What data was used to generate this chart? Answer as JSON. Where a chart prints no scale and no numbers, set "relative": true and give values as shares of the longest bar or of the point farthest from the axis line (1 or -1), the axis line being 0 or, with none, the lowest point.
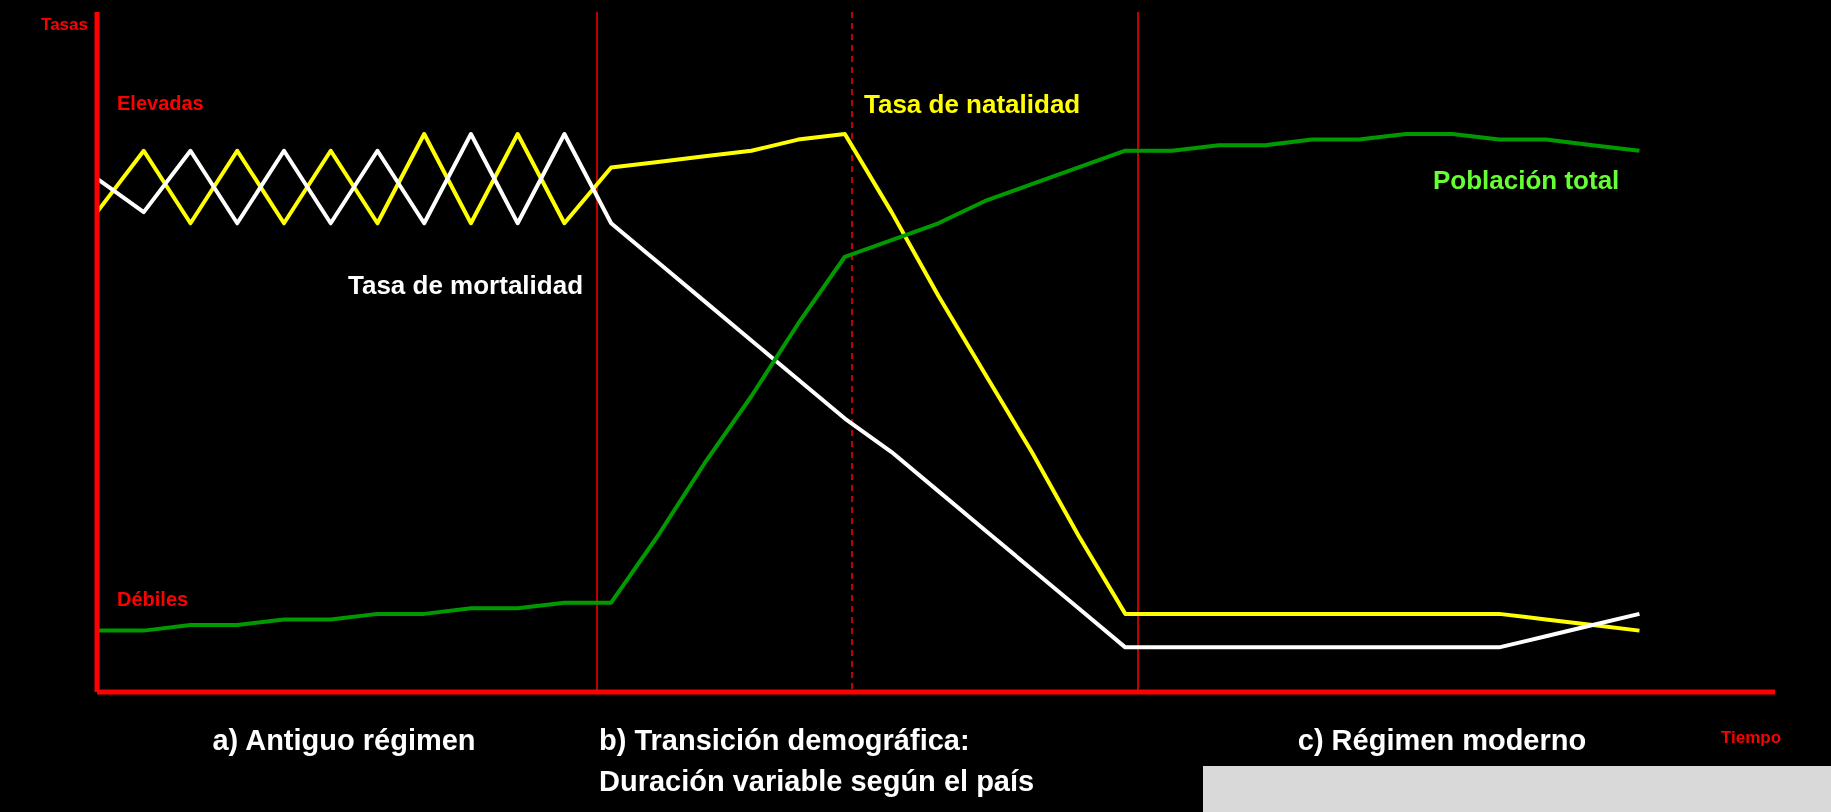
{
  "chart_data": {
    "type": "line",
    "relative": true,
    "xlabel": "Tiempo",
    "categories": [
      null,
      null,
      null,
      null,
      null,
      null,
      null,
      null,
      null,
      null,
      null,
      null,
      null,
      null,
      null,
      null,
      null,
      null,
      null,
      null,
      null,
      null,
      null,
      null,
      null,
      null,
      null,
      null,
      null,
      null,
      null,
      null,
      null,
      null,
      null,
      null
    ],
    "series": [
      {
        "name": "Tasa de natalidad",
        "color": "#ffff00",
        "values": [
          0.86,
          0.97,
          0.84,
          0.97,
          0.84,
          0.97,
          0.84,
          1.0,
          0.84,
          1.0,
          0.84,
          0.94,
          0.95,
          0.96,
          0.97,
          0.99,
          1.0,
          0.86,
          0.71,
          0.57,
          0.43,
          0.28,
          0.14,
          0.14,
          0.14,
          0.14,
          0.14,
          0.14,
          0.14,
          0.14,
          0.14,
          0.13,
          0.12,
          0.11,
          null,
          null
        ]
      },
      {
        "name": "Tasa de mortalidad",
        "color": "#ffffff",
        "values": [
          0.92,
          0.86,
          0.97,
          0.84,
          0.97,
          0.84,
          0.97,
          0.84,
          1.0,
          0.84,
          1.0,
          0.84,
          0.77,
          0.7,
          0.63,
          0.56,
          0.49,
          0.43,
          0.36,
          0.29,
          0.22,
          0.15,
          0.08,
          0.08,
          0.08,
          0.08,
          0.08,
          0.08,
          0.08,
          0.08,
          0.08,
          0.1,
          0.12,
          0.14,
          null,
          null
        ]
      },
      {
        "name": "Población total",
        "color": "#009900",
        "values": [
          0.11,
          0.11,
          0.12,
          0.12,
          0.13,
          0.13,
          0.14,
          0.14,
          0.15,
          0.15,
          0.16,
          0.16,
          0.28,
          0.41,
          0.53,
          0.66,
          0.78,
          0.81,
          0.84,
          0.88,
          0.91,
          0.94,
          0.97,
          0.97,
          0.98,
          0.98,
          0.99,
          0.99,
          1.0,
          1.0,
          0.99,
          0.99,
          0.98,
          0.97,
          null,
          null
        ]
      }
    ],
    "annotations": [
      "Tasas",
      "Elevadas",
      "Débiles",
      "a) Antiguo régimen",
      "b) Transición demográfica:\nDuración variable según el país",
      "c) Régimen moderno"
    ]
  }
}
